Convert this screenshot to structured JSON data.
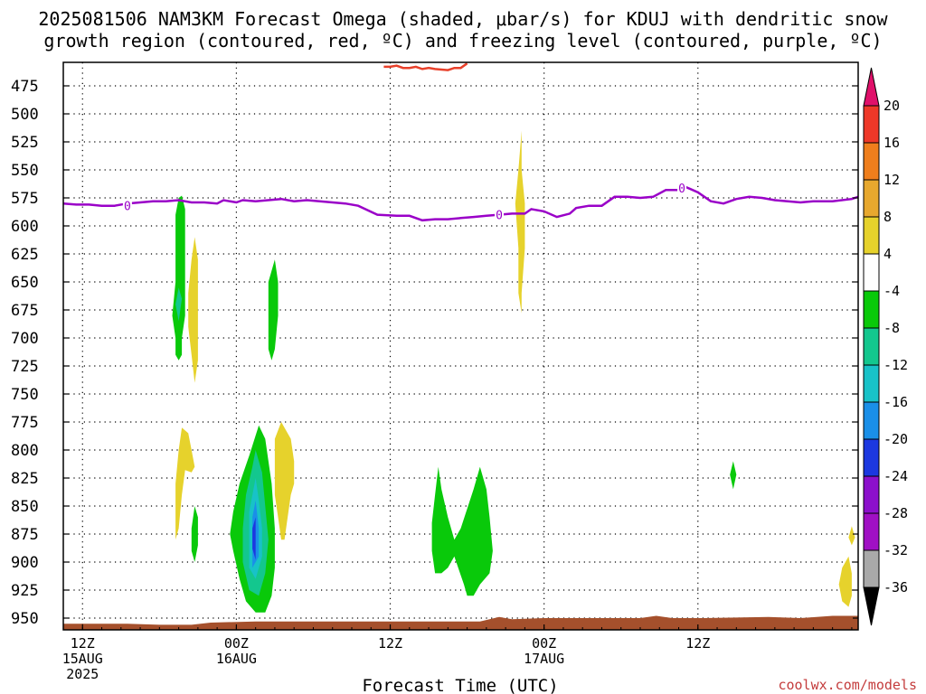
{
  "title": {
    "line1": "2025081506 NAM3KM Forecast Omega (shaded, μbar/s) for KDUJ with dendritic snow",
    "line2": "growth region (contoured, red, ºC) and freezing level (contoured, purple, ºC)"
  },
  "credit": "coolwx.com/models",
  "chart_data": {
    "type": "contour",
    "xlabel": "Forecast Time (UTC)",
    "ylabel": "",
    "y_axis": "pressure (hPa), inverted",
    "ylim": [
      960,
      455
    ],
    "y_ticks": [
      "475",
      "500",
      "525",
      "550",
      "575",
      "600",
      "625",
      "650",
      "675",
      "700",
      "725",
      "750",
      "775",
      "800",
      "825",
      "850",
      "875",
      "900",
      "925",
      "950"
    ],
    "x_start": "2025-08-15 06Z",
    "x_end": "2025-08-17 18Z",
    "x_ticks": [
      {
        "l1": "12Z",
        "l2": "15AUG",
        "l3": "2025"
      },
      {
        "l1": "00Z",
        "l2": "16AUG",
        "l3": ""
      },
      {
        "l1": "12Z",
        "l2": "",
        "l3": ""
      },
      {
        "l1": "00Z",
        "l2": "17AUG",
        "l3": ""
      },
      {
        "l1": "12Z",
        "l2": "",
        "l3": ""
      }
    ],
    "grid": true,
    "legend": "colorbar-right",
    "colorbar": {
      "labels": [
        "20",
        "16",
        "12",
        "8",
        "4",
        "-4",
        "-8",
        "-12",
        "-16",
        "-20",
        "-24",
        "-28",
        "-32",
        "-36"
      ],
      "colors": [
        "#e0106a",
        "#ee3828",
        "#ef7e1c",
        "#e7a82e",
        "#e6d22c",
        "#ffffff",
        "#09c90a",
        "#13c78e",
        "#18c2c8",
        "#1a8fe8",
        "#1c38e0",
        "#8c10cc",
        "#a010c4",
        "#a9a9a9",
        "#000000"
      ]
    },
    "freezing_level": {
      "label": "0",
      "color": "#9a00c8",
      "points": [
        [
          0,
          580
        ],
        [
          4,
          581
        ],
        [
          8,
          581
        ],
        [
          12,
          582
        ],
        [
          16,
          582
        ],
        [
          20,
          580
        ],
        [
          24,
          579
        ],
        [
          28,
          578
        ],
        [
          32,
          578
        ],
        [
          36,
          577
        ],
        [
          40,
          579
        ],
        [
          44,
          579
        ],
        [
          48,
          580
        ],
        [
          50,
          577
        ],
        [
          54,
          579
        ],
        [
          56,
          577
        ],
        [
          60,
          578
        ],
        [
          64,
          577
        ],
        [
          68,
          576
        ],
        [
          72,
          578
        ],
        [
          76,
          577
        ],
        [
          80,
          578
        ],
        [
          84,
          579
        ],
        [
          88,
          580
        ],
        [
          92,
          582
        ],
        [
          98,
          590
        ],
        [
          104,
          591
        ],
        [
          108,
          591
        ],
        [
          112,
          595
        ],
        [
          116,
          594
        ],
        [
          120,
          594
        ],
        [
          124,
          593
        ],
        [
          128,
          592
        ],
        [
          132,
          591
        ],
        [
          136,
          590
        ],
        [
          140,
          589
        ],
        [
          144,
          589
        ],
        [
          146,
          585
        ],
        [
          150,
          587
        ],
        [
          154,
          592
        ],
        [
          158,
          589
        ],
        [
          160,
          584
        ],
        [
          164,
          582
        ],
        [
          168,
          582
        ],
        [
          172,
          574
        ],
        [
          176,
          574
        ],
        [
          180,
          575
        ],
        [
          184,
          574
        ],
        [
          188,
          568
        ],
        [
          192,
          568
        ],
        [
          194,
          565
        ],
        [
          198,
          570
        ],
        [
          202,
          578
        ],
        [
          206,
          580
        ],
        [
          210,
          576
        ],
        [
          214,
          574
        ],
        [
          218,
          575
        ],
        [
          222,
          577
        ],
        [
          226,
          578
        ],
        [
          230,
          579
        ],
        [
          234,
          578
        ],
        [
          240,
          578
        ],
        [
          246,
          576
        ],
        [
          248,
          574
        ]
      ]
    },
    "dgz_contour": {
      "color": "#e8402a",
      "points": [
        [
          100,
          458
        ],
        [
          102,
          458
        ],
        [
          104,
          457
        ],
        [
          106,
          459
        ],
        [
          108,
          459
        ],
        [
          110,
          458
        ],
        [
          112,
          460
        ],
        [
          114,
          459
        ],
        [
          116,
          460
        ],
        [
          120,
          461
        ],
        [
          122,
          459
        ],
        [
          124,
          459
        ],
        [
          126,
          455
        ]
      ]
    },
    "omega_regions": [
      {
        "name": "green",
        "value": -4,
        "color": "#09c90a",
        "points": [
          [
            36,
            575
          ],
          [
            37,
            573
          ],
          [
            38,
            585
          ],
          [
            38,
            620
          ],
          [
            38,
            650
          ],
          [
            38,
            680
          ],
          [
            37,
            700
          ],
          [
            37,
            715
          ],
          [
            36,
            720
          ],
          [
            35,
            715
          ],
          [
            35,
            700
          ],
          [
            34,
            680
          ],
          [
            35,
            650
          ],
          [
            35,
            610
          ],
          [
            35,
            590
          ]
        ]
      },
      {
        "name": "cyan-core",
        "value": -8,
        "color": "#13c78e",
        "points": [
          [
            36,
            655
          ],
          [
            37,
            665
          ],
          [
            36,
            685
          ],
          [
            35,
            670
          ]
        ]
      },
      {
        "name": "yellow",
        "value": 4,
        "color": "#e6d22c",
        "points": [
          [
            41,
            610
          ],
          [
            42,
            630
          ],
          [
            42,
            660
          ],
          [
            42,
            690
          ],
          [
            42,
            720
          ],
          [
            41,
            740
          ],
          [
            40,
            715
          ],
          [
            39,
            690
          ],
          [
            39,
            660
          ],
          [
            40,
            630
          ]
        ]
      },
      {
        "name": "green",
        "value": -4,
        "color": "#09c90a",
        "points": [
          [
            66,
            630
          ],
          [
            67,
            650
          ],
          [
            67,
            680
          ],
          [
            66,
            710
          ],
          [
            65,
            720
          ],
          [
            64,
            710
          ],
          [
            64,
            680
          ],
          [
            64,
            650
          ]
        ]
      },
      {
        "name": "yellow",
        "value": 4,
        "color": "#e6d22c",
        "points": [
          [
            37,
            780
          ],
          [
            39,
            785
          ],
          [
            40,
            800
          ],
          [
            41,
            815
          ],
          [
            40,
            820
          ],
          [
            38,
            818
          ],
          [
            37,
            840
          ],
          [
            36,
            870
          ],
          [
            35,
            880
          ],
          [
            35,
            860
          ],
          [
            35,
            830
          ],
          [
            36,
            800
          ]
        ]
      },
      {
        "name": "green",
        "value": -4,
        "color": "#09c90a",
        "points": [
          [
            41,
            850
          ],
          [
            42,
            860
          ],
          [
            42,
            885
          ],
          [
            41,
            900
          ],
          [
            40,
            890
          ],
          [
            40,
            870
          ]
        ]
      },
      {
        "name": "green",
        "value": -4,
        "color": "#09c90a",
        "points": [
          [
            61,
            778
          ],
          [
            63,
            790
          ],
          [
            65,
            830
          ],
          [
            66,
            870
          ],
          [
            66,
            905
          ],
          [
            65,
            930
          ],
          [
            63,
            945
          ],
          [
            60,
            945
          ],
          [
            57,
            935
          ],
          [
            55,
            915
          ],
          [
            53,
            890
          ],
          [
            52,
            875
          ],
          [
            53,
            855
          ],
          [
            55,
            830
          ],
          [
            58,
            805
          ]
        ]
      },
      {
        "name": "cyan",
        "value": -8,
        "color": "#13c78e",
        "points": [
          [
            60,
            800
          ],
          [
            62,
            820
          ],
          [
            63,
            850
          ],
          [
            64,
            880
          ],
          [
            63,
            910
          ],
          [
            61,
            930
          ],
          [
            58,
            925
          ],
          [
            56,
            900
          ],
          [
            56,
            870
          ],
          [
            57,
            840
          ],
          [
            59,
            815
          ]
        ]
      },
      {
        "name": "light-blue",
        "value": -12,
        "color": "#18c2c8",
        "points": [
          [
            60,
            825
          ],
          [
            61,
            845
          ],
          [
            62,
            870
          ],
          [
            62,
            895
          ],
          [
            60,
            915
          ],
          [
            58,
            905
          ],
          [
            58,
            880
          ],
          [
            58,
            855
          ]
        ]
      },
      {
        "name": "blue",
        "value": -16,
        "color": "#1a8fe8",
        "points": [
          [
            60,
            845
          ],
          [
            61,
            870
          ],
          [
            61,
            895
          ],
          [
            59,
            905
          ],
          [
            59,
            880
          ],
          [
            59,
            860
          ]
        ]
      },
      {
        "name": "dark-blue",
        "value": -20,
        "color": "#1c38e0",
        "points": [
          [
            60,
            860
          ],
          [
            60,
            880
          ],
          [
            60,
            898
          ],
          [
            59,
            888
          ],
          [
            59,
            870
          ]
        ]
      },
      {
        "name": "yellow",
        "value": 4,
        "color": "#e6d22c",
        "points": [
          [
            68,
            775
          ],
          [
            71,
            790
          ],
          [
            72,
            810
          ],
          [
            72,
            830
          ],
          [
            71,
            840
          ],
          [
            70,
            860
          ],
          [
            69,
            880
          ],
          [
            68,
            880
          ],
          [
            67,
            860
          ],
          [
            66,
            840
          ],
          [
            66,
            815
          ],
          [
            66,
            790
          ]
        ]
      },
      {
        "name": "green",
        "value": -4,
        "color": "#09c90a",
        "points": [
          [
            117,
            815
          ],
          [
            118,
            835
          ],
          [
            120,
            860
          ],
          [
            122,
            880
          ],
          [
            124,
            870
          ],
          [
            128,
            835
          ],
          [
            130,
            815
          ],
          [
            132,
            835
          ],
          [
            133,
            860
          ],
          [
            134,
            890
          ],
          [
            133,
            910
          ],
          [
            130,
            920
          ],
          [
            128,
            930
          ],
          [
            126,
            930
          ],
          [
            125,
            920
          ],
          [
            122,
            895
          ],
          [
            120,
            905
          ],
          [
            118,
            910
          ],
          [
            116,
            910
          ],
          [
            115,
            890
          ],
          [
            115,
            865
          ],
          [
            116,
            840
          ]
        ]
      },
      {
        "name": "yellow",
        "value": 4,
        "color": "#e6d22c",
        "points": [
          [
            143,
            515
          ],
          [
            143,
            550
          ],
          [
            144,
            580
          ],
          [
            144,
            620
          ],
          [
            143,
            660
          ],
          [
            143,
            678
          ],
          [
            142,
            660
          ],
          [
            142,
            620
          ],
          [
            141,
            580
          ],
          [
            142,
            550
          ]
        ]
      },
      {
        "name": "green",
        "value": -4,
        "color": "#09c90a",
        "points": [
          [
            209,
            810
          ],
          [
            210,
            822
          ],
          [
            209,
            835
          ],
          [
            208,
            822
          ]
        ]
      },
      {
        "name": "yellow",
        "value": 4,
        "color": "#e6d22c",
        "points": [
          [
            246,
            868
          ],
          [
            247,
            878
          ],
          [
            246,
            885
          ],
          [
            245,
            878
          ]
        ]
      },
      {
        "name": "yellow",
        "value": 4,
        "color": "#e6d22c",
        "points": [
          [
            245,
            895
          ],
          [
            246,
            910
          ],
          [
            246,
            930
          ],
          [
            245,
            940
          ],
          [
            243,
            935
          ],
          [
            242,
            920
          ],
          [
            243,
            905
          ]
        ]
      }
    ],
    "terrain": {
      "color": "#a5502c",
      "points": [
        [
          0,
          955
        ],
        [
          20,
          955
        ],
        [
          30,
          956
        ],
        [
          40,
          956
        ],
        [
          46,
          954
        ],
        [
          60,
          953
        ],
        [
          80,
          953
        ],
        [
          100,
          953
        ],
        [
          120,
          953
        ],
        [
          130,
          953
        ],
        [
          136,
          949
        ],
        [
          140,
          951
        ],
        [
          150,
          950
        ],
        [
          170,
          950
        ],
        [
          180,
          950
        ],
        [
          185,
          948
        ],
        [
          190,
          950
        ],
        [
          200,
          950
        ],
        [
          220,
          949
        ],
        [
          230,
          950
        ],
        [
          240,
          948
        ],
        [
          248,
          948
        ]
      ]
    }
  }
}
